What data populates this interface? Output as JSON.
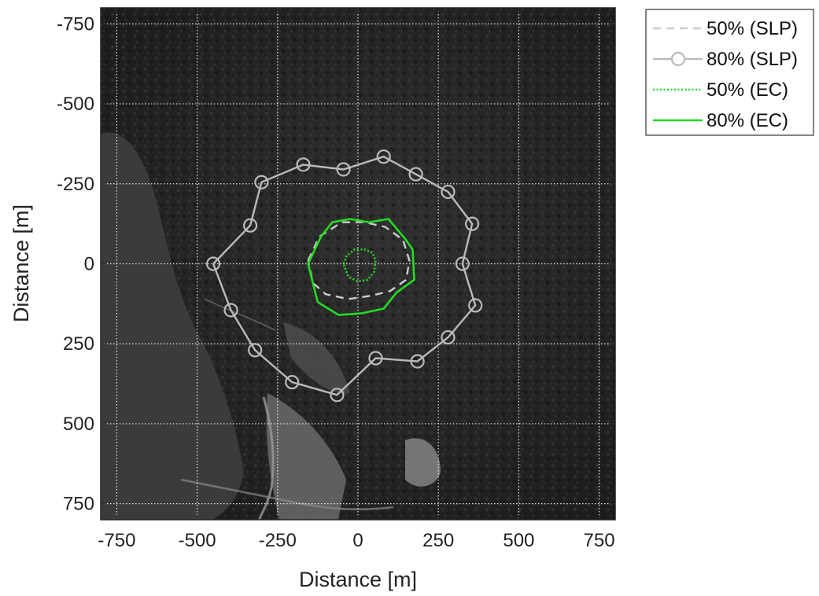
{
  "chart_data": {
    "type": "line",
    "xlabel": "Distance [m]",
    "ylabel": "Distance [m]",
    "xlim": [
      -800,
      800
    ],
    "ylim": [
      -800,
      800
    ],
    "y_direction": "reversed",
    "grid": true,
    "grid_style": "dotted-white",
    "background": "aerial photograph (forest, lake on left, fields at bottom)",
    "x_ticks": [
      -750,
      -500,
      -250,
      0,
      250,
      500,
      750
    ],
    "y_ticks": [
      -750,
      -500,
      -250,
      0,
      250,
      500,
      750
    ],
    "x_tick_labels": [
      "-750",
      "-500",
      "-250",
      "0",
      "250",
      "500",
      "750"
    ],
    "y_tick_labels": [
      "-750",
      "-500",
      "-250",
      "0",
      "250",
      "500",
      "750"
    ],
    "legend_placement": "outside-top-right",
    "series": [
      {
        "name": "50% (SLP)",
        "style": "dashed",
        "color": "#cccccc",
        "marker": "none",
        "x": [
          -155,
          -120,
          -50,
          20,
          85,
          140,
          160,
          150,
          100,
          40,
          -30,
          -100,
          -140,
          -155
        ],
        "y": [
          -10,
          -85,
          -130,
          -130,
          -115,
          -75,
          -10,
          50,
          85,
          100,
          110,
          95,
          60,
          -10
        ]
      },
      {
        "name": "80% (SLP)",
        "style": "solid",
        "color": "#bbbbbb",
        "marker": "circle",
        "x": [
          -450,
          -335,
          -300,
          -170,
          -45,
          80,
          180,
          280,
          355,
          325,
          365,
          280,
          185,
          55,
          -65,
          -205,
          -320,
          -395,
          -450
        ],
        "y": [
          0,
          -120,
          -255,
          -310,
          -295,
          -335,
          -280,
          -225,
          -125,
          0,
          130,
          230,
          305,
          295,
          410,
          370,
          270,
          145,
          0
        ]
      },
      {
        "name": "50% (EC)",
        "style": "dotted",
        "color": "#22dd22",
        "marker": "none",
        "x": [
          -45,
          -35,
          -10,
          20,
          45,
          55,
          50,
          30,
          0,
          -30,
          -45
        ],
        "y": [
          0,
          -25,
          -45,
          -45,
          -35,
          -10,
          25,
          50,
          55,
          40,
          0
        ]
      },
      {
        "name": "80% (EC)",
        "style": "solid",
        "color": "#22dd22",
        "marker": "none",
        "x": [
          -155,
          -115,
          -80,
          -25,
          35,
          95,
          145,
          170,
          175,
          120,
          80,
          10,
          -60,
          -125,
          -155
        ],
        "y": [
          0,
          -85,
          -130,
          -140,
          -130,
          -140,
          -80,
          -45,
          50,
          90,
          140,
          155,
          160,
          120,
          0
        ]
      }
    ]
  },
  "colors": {
    "plot_bg_dark": "#2a2a2a",
    "forest": "#1f1f1f",
    "lake": "#3a3a3a",
    "field": "#6b6b6b",
    "axes": "#222222",
    "legend_border": "#333333"
  }
}
